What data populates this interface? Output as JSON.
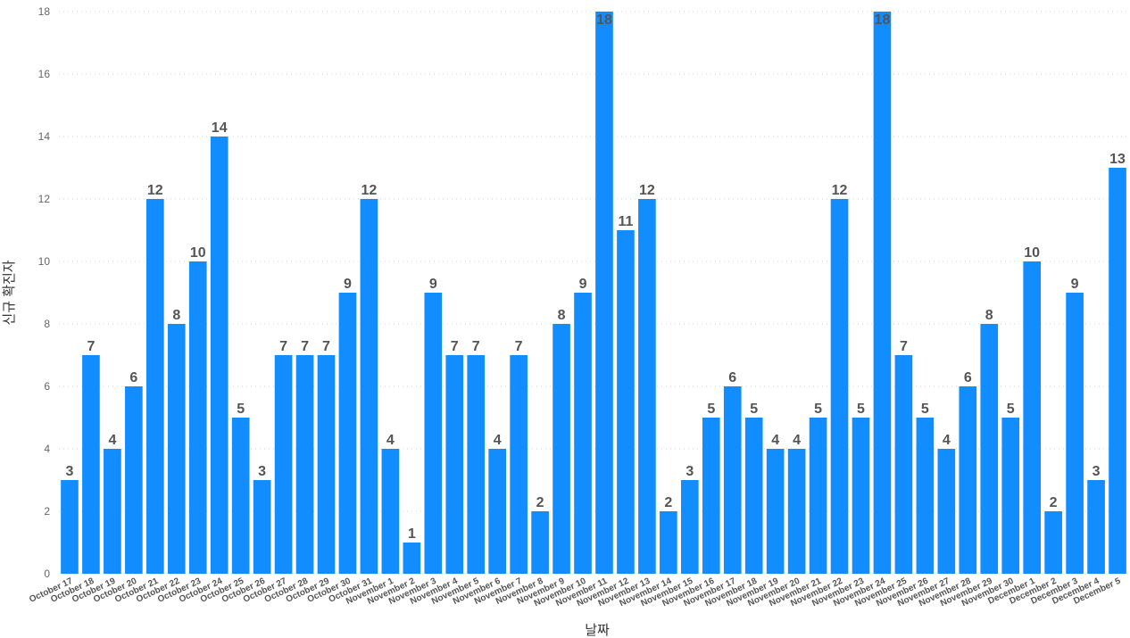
{
  "chart_data": {
    "type": "bar",
    "xlabel": "날짜",
    "ylabel": "신규 확진자",
    "ylim": [
      0,
      18
    ],
    "yticks": [
      0,
      2,
      4,
      6,
      8,
      10,
      12,
      14,
      16,
      18
    ],
    "grid": true,
    "bar_color": "#118DFF",
    "categories": [
      "October 17",
      "October 18",
      "October 19",
      "October 20",
      "October 21",
      "October 22",
      "October 23",
      "October 24",
      "October 25",
      "October 26",
      "October 27",
      "October 28",
      "October 29",
      "October 30",
      "October 31",
      "November 1",
      "November 2",
      "November 3",
      "November 4",
      "November 5",
      "November 6",
      "November 7",
      "November 8",
      "November 9",
      "November 10",
      "November 11",
      "November 12",
      "November 13",
      "November 14",
      "November 15",
      "November 16",
      "November 17",
      "November 18",
      "November 19",
      "November 20",
      "November 21",
      "November 22",
      "November 23",
      "November 24",
      "November 25",
      "November 26",
      "November 27",
      "November 28",
      "November 29",
      "November 30",
      "December 1",
      "December 2",
      "December 3",
      "December 4",
      "December 5"
    ],
    "values": [
      3,
      7,
      4,
      6,
      12,
      8,
      10,
      14,
      5,
      3,
      7,
      7,
      7,
      9,
      12,
      4,
      1,
      9,
      7,
      7,
      4,
      7,
      2,
      8,
      9,
      18,
      11,
      12,
      2,
      3,
      5,
      6,
      5,
      4,
      4,
      5,
      12,
      5,
      18,
      7,
      5,
      4,
      6,
      8,
      5,
      10,
      2,
      9,
      3,
      13
    ]
  }
}
